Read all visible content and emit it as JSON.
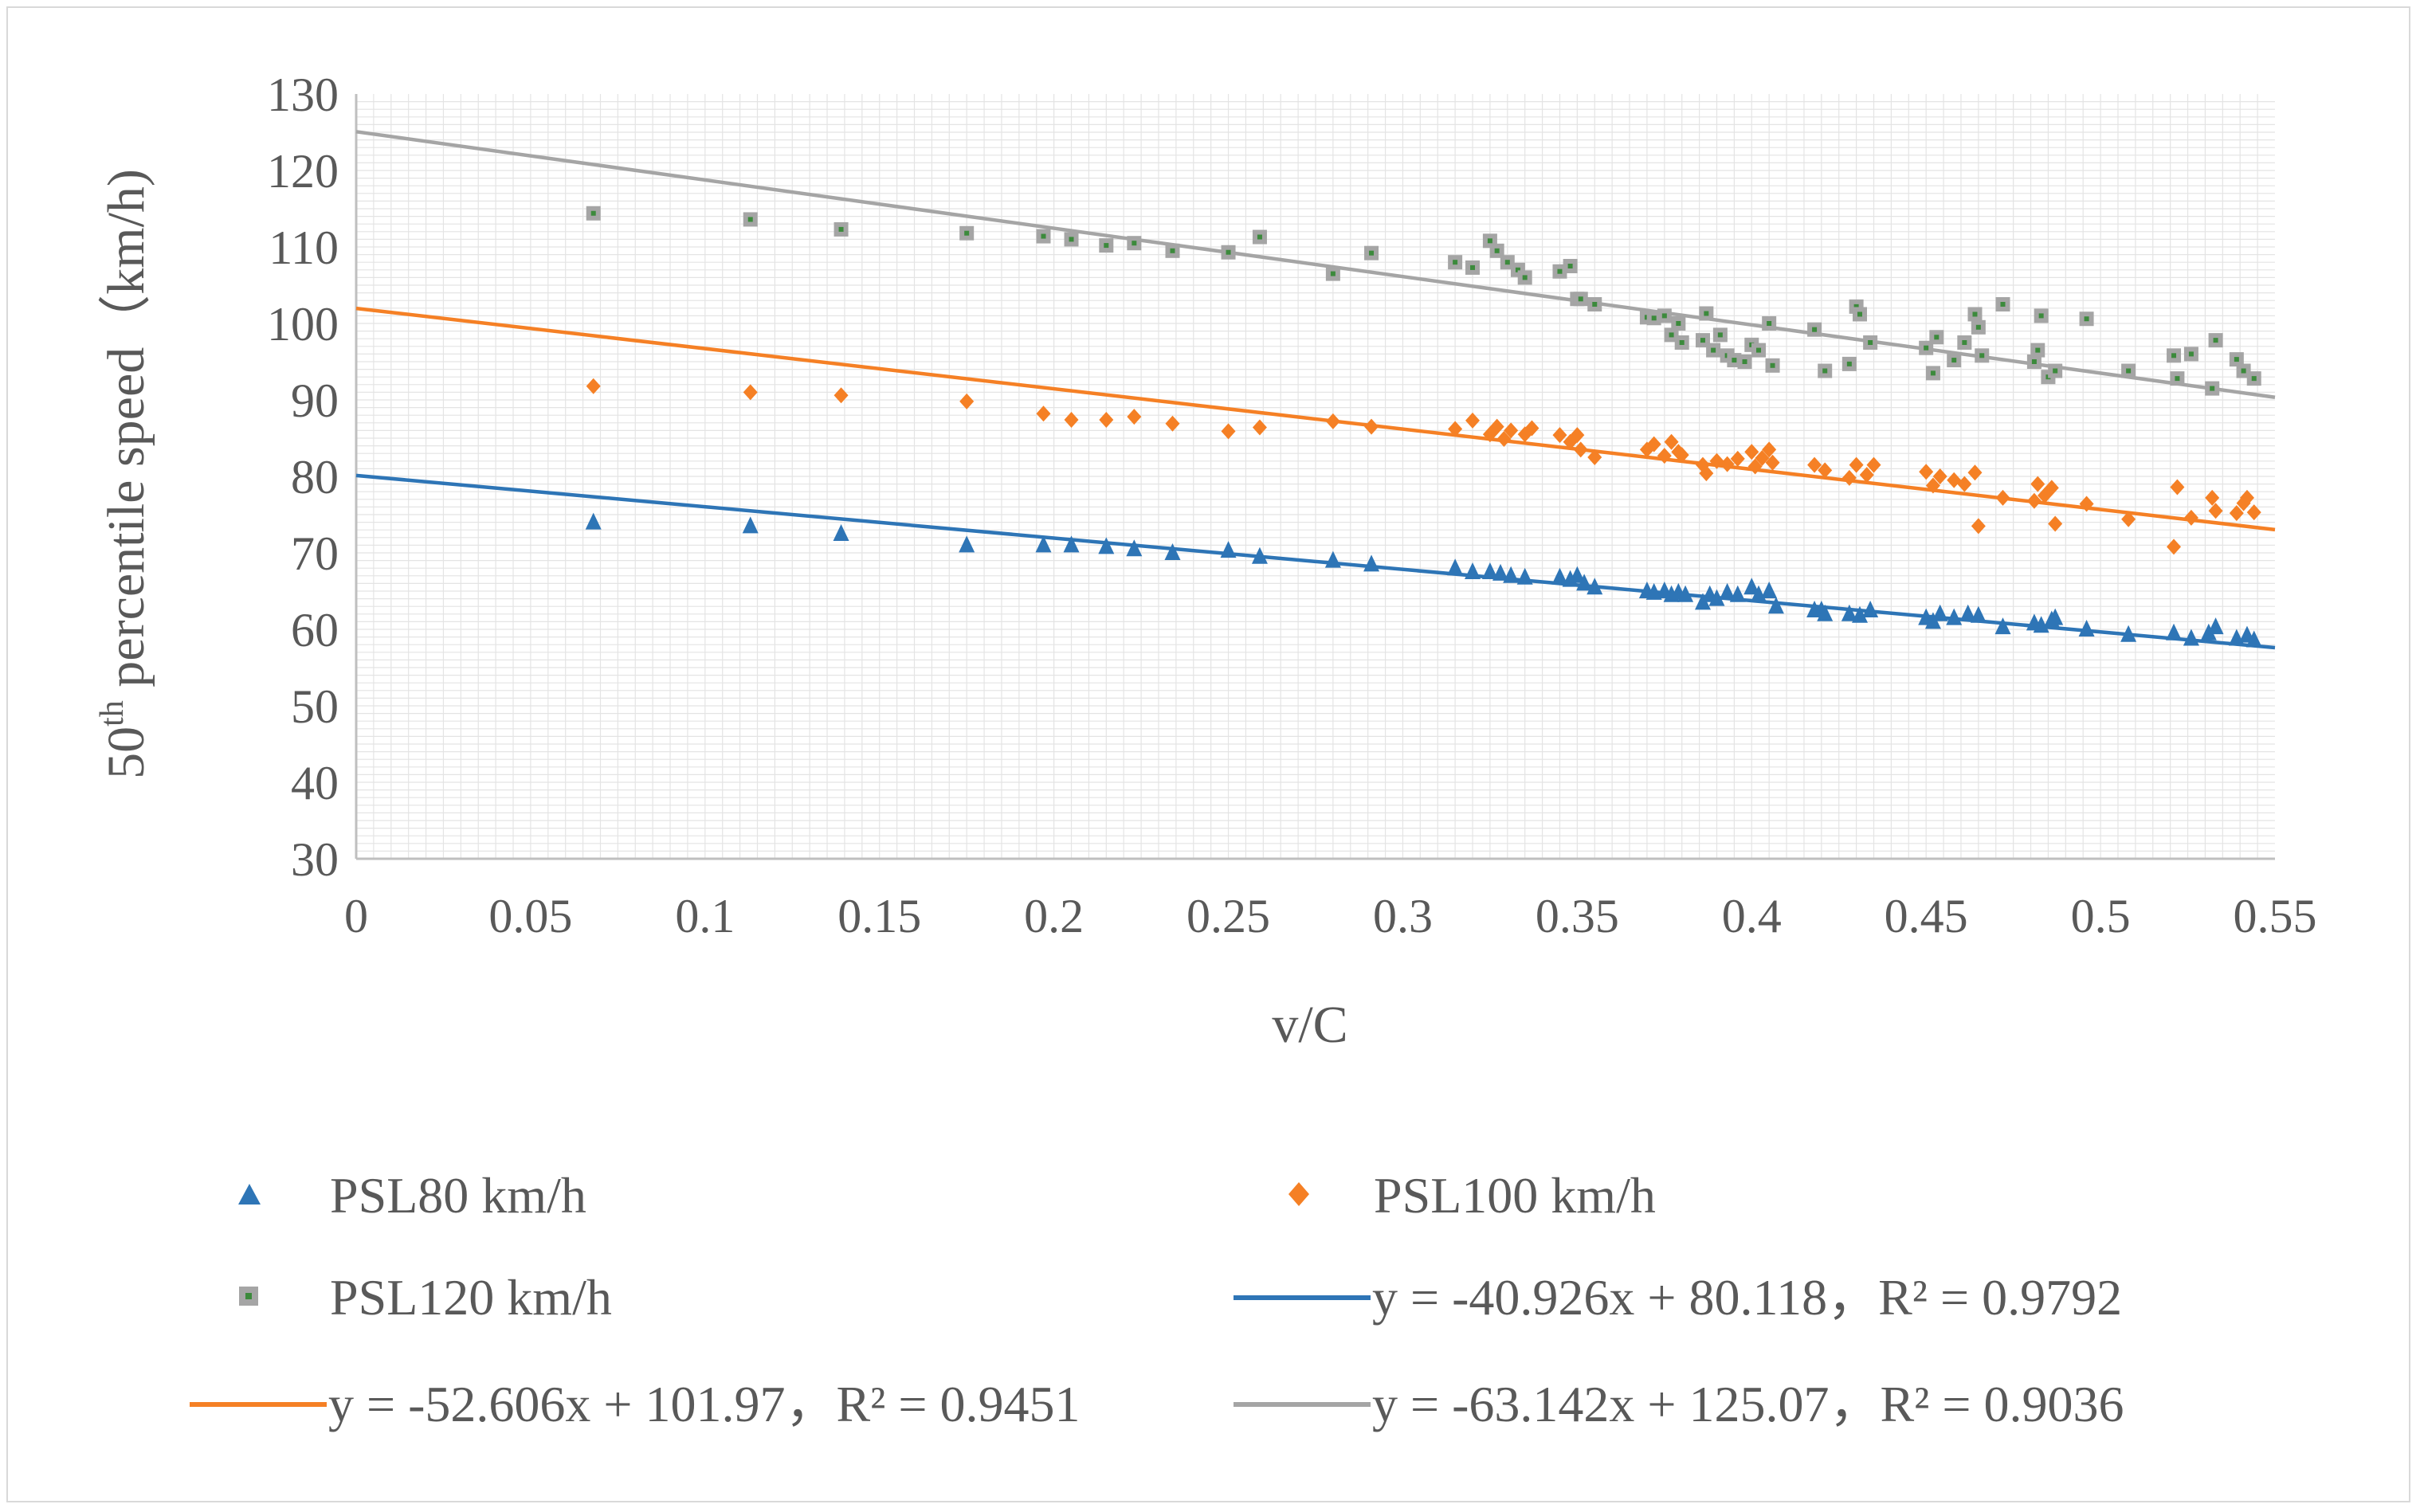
{
  "chart_data": {
    "type": "scatter",
    "title": "",
    "xlabel": "v/C",
    "ylabel": "50th percentile speed（km/h)",
    "ylabel_base": "50",
    "ylabel_sup": "th",
    "ylabel_rest": " percentile speed（km/h)",
    "xlim": [
      0,
      0.55
    ],
    "ylim": [
      30,
      130
    ],
    "x_ticks": [
      "0",
      "0.05",
      "0.1",
      "0.15",
      "0.2",
      "0.25",
      "0.3",
      "0.35",
      "0.4",
      "0.45",
      "0.5",
      "0.55"
    ],
    "y_ticks": [
      "30",
      "40",
      "50",
      "60",
      "70",
      "80",
      "90",
      "100",
      "110",
      "120",
      "130"
    ],
    "grid": "dense light gray",
    "legend_position": "bottom",
    "colors": {
      "psl80": "#2E75B6",
      "psl100": "#F58025",
      "psl120": "#A5A5A5",
      "psl120_center": "#3C8A3C",
      "axis": "#bfbfbf",
      "grid": "#e4e4e4"
    },
    "series": [
      {
        "name": "PSL80 km/h",
        "marker": "triangle",
        "color": "#2E75B6",
        "points": [
          [
            0.068,
            74
          ],
          [
            0.113,
            73.5
          ],
          [
            0.139,
            72.5
          ],
          [
            0.175,
            71
          ],
          [
            0.197,
            71
          ],
          [
            0.205,
            71
          ],
          [
            0.215,
            70.8
          ],
          [
            0.223,
            70.5
          ],
          [
            0.234,
            70
          ],
          [
            0.25,
            70.3
          ],
          [
            0.259,
            69.5
          ],
          [
            0.28,
            69
          ],
          [
            0.291,
            68.5
          ],
          [
            0.315,
            68
          ],
          [
            0.32,
            67.5
          ],
          [
            0.325,
            67.5
          ],
          [
            0.328,
            67.3
          ],
          [
            0.331,
            67
          ],
          [
            0.335,
            66.8
          ],
          [
            0.345,
            66.8
          ],
          [
            0.348,
            66.5
          ],
          [
            0.35,
            67
          ],
          [
            0.352,
            66
          ],
          [
            0.355,
            65.5
          ],
          [
            0.37,
            65
          ],
          [
            0.372,
            64.8
          ],
          [
            0.375,
            65
          ],
          [
            0.377,
            64.5
          ],
          [
            0.379,
            64.8
          ],
          [
            0.381,
            64.5
          ],
          [
            0.386,
            63.5
          ],
          [
            0.388,
            64.5
          ],
          [
            0.39,
            64
          ],
          [
            0.393,
            64.8
          ],
          [
            0.396,
            64.5
          ],
          [
            0.4,
            65.5
          ],
          [
            0.402,
            64.5
          ],
          [
            0.405,
            65
          ],
          [
            0.407,
            63
          ],
          [
            0.418,
            62.5
          ],
          [
            0.42,
            62.5
          ],
          [
            0.421,
            62
          ],
          [
            0.428,
            62
          ],
          [
            0.431,
            61.8
          ],
          [
            0.434,
            62.5
          ],
          [
            0.45,
            61.5
          ],
          [
            0.452,
            61
          ],
          [
            0.454,
            62
          ],
          [
            0.458,
            61.5
          ],
          [
            0.462,
            62
          ],
          [
            0.465,
            61.8
          ],
          [
            0.472,
            60.3
          ],
          [
            0.481,
            60.8
          ],
          [
            0.483,
            60.5
          ],
          [
            0.486,
            61.2
          ],
          [
            0.487,
            61.5
          ],
          [
            0.496,
            60
          ],
          [
            0.508,
            59.3
          ],
          [
            0.521,
            59.5
          ],
          [
            0.526,
            58.8
          ],
          [
            0.531,
            59.5
          ],
          [
            0.533,
            60.3
          ],
          [
            0.539,
            58.8
          ],
          [
            0.542,
            59.2
          ],
          [
            0.544,
            58.6
          ]
        ]
      },
      {
        "name": "PSL100 km/h",
        "marker": "diamond",
        "color": "#F58025",
        "points": [
          [
            0.068,
            91.8
          ],
          [
            0.113,
            91
          ],
          [
            0.139,
            90.6
          ],
          [
            0.175,
            89.8
          ],
          [
            0.197,
            88.2
          ],
          [
            0.205,
            87.4
          ],
          [
            0.215,
            87.4
          ],
          [
            0.223,
            87.8
          ],
          [
            0.234,
            86.9
          ],
          [
            0.25,
            85.9
          ],
          [
            0.259,
            86.4
          ],
          [
            0.28,
            87.2
          ],
          [
            0.291,
            86.5
          ],
          [
            0.315,
            86.2
          ],
          [
            0.32,
            87.3
          ],
          [
            0.325,
            85.5
          ],
          [
            0.327,
            86.5
          ],
          [
            0.329,
            84.9
          ],
          [
            0.331,
            86
          ],
          [
            0.335,
            85.5
          ],
          [
            0.337,
            86.3
          ],
          [
            0.345,
            85.4
          ],
          [
            0.348,
            84.5
          ],
          [
            0.35,
            85.4
          ],
          [
            0.351,
            83.5
          ],
          [
            0.355,
            82.5
          ],
          [
            0.37,
            83.5
          ],
          [
            0.372,
            84.2
          ],
          [
            0.375,
            82.7
          ],
          [
            0.377,
            84.5
          ],
          [
            0.379,
            83.2
          ],
          [
            0.38,
            82.8
          ],
          [
            0.386,
            81.5
          ],
          [
            0.387,
            80.4
          ],
          [
            0.39,
            82
          ],
          [
            0.393,
            81.6
          ],
          [
            0.396,
            82.3
          ],
          [
            0.4,
            83.2
          ],
          [
            0.401,
            81.3
          ],
          [
            0.403,
            82.4
          ],
          [
            0.405,
            83.5
          ],
          [
            0.406,
            81.8
          ],
          [
            0.418,
            81.5
          ],
          [
            0.421,
            80.8
          ],
          [
            0.428,
            79.8
          ],
          [
            0.43,
            81.5
          ],
          [
            0.433,
            80.2
          ],
          [
            0.435,
            81.5
          ],
          [
            0.45,
            80.6
          ],
          [
            0.452,
            78.8
          ],
          [
            0.454,
            80
          ],
          [
            0.458,
            79.5
          ],
          [
            0.461,
            79
          ],
          [
            0.464,
            80.5
          ],
          [
            0.465,
            73.5
          ],
          [
            0.472,
            77.2
          ],
          [
            0.481,
            76.8
          ],
          [
            0.482,
            79
          ],
          [
            0.484,
            77.5
          ],
          [
            0.486,
            78.5
          ],
          [
            0.487,
            73.8
          ],
          [
            0.496,
            76.4
          ],
          [
            0.508,
            74.4
          ],
          [
            0.521,
            70.8
          ],
          [
            0.522,
            78.6
          ],
          [
            0.526,
            74.6
          ],
          [
            0.532,
            77.2
          ],
          [
            0.533,
            75.5
          ],
          [
            0.539,
            75.2
          ],
          [
            0.541,
            76.5
          ],
          [
            0.542,
            77.2
          ],
          [
            0.544,
            75.3
          ]
        ]
      },
      {
        "name": "PSL120 km/h",
        "marker": "square",
        "color": "#A5A5A5",
        "points": [
          [
            0.068,
            114.4
          ],
          [
            0.113,
            113.6
          ],
          [
            0.139,
            112.3
          ],
          [
            0.175,
            111.8
          ],
          [
            0.197,
            111.4
          ],
          [
            0.205,
            111
          ],
          [
            0.215,
            110.2
          ],
          [
            0.223,
            110.5
          ],
          [
            0.234,
            109.5
          ],
          [
            0.25,
            109.3
          ],
          [
            0.259,
            111.3
          ],
          [
            0.28,
            106.5
          ],
          [
            0.291,
            109.2
          ],
          [
            0.315,
            108
          ],
          [
            0.32,
            107.3
          ],
          [
            0.325,
            110.8
          ],
          [
            0.327,
            109.5
          ],
          [
            0.33,
            108
          ],
          [
            0.333,
            107
          ],
          [
            0.335,
            106
          ],
          [
            0.345,
            106.8
          ],
          [
            0.348,
            107.5
          ],
          [
            0.35,
            103.2
          ],
          [
            0.351,
            103.2
          ],
          [
            0.355,
            102.5
          ],
          [
            0.37,
            100.8
          ],
          [
            0.372,
            100.7
          ],
          [
            0.375,
            101
          ],
          [
            0.377,
            98.5
          ],
          [
            0.379,
            100
          ],
          [
            0.38,
            97.5
          ],
          [
            0.386,
            97.8
          ],
          [
            0.387,
            101.3
          ],
          [
            0.389,
            96.5
          ],
          [
            0.391,
            98.5
          ],
          [
            0.393,
            95.8
          ],
          [
            0.395,
            95.2
          ],
          [
            0.398,
            95
          ],
          [
            0.4,
            97.2
          ],
          [
            0.402,
            96.5
          ],
          [
            0.405,
            100
          ],
          [
            0.406,
            94.5
          ],
          [
            0.418,
            99.2
          ],
          [
            0.421,
            93.8
          ],
          [
            0.428,
            94.7
          ],
          [
            0.43,
            102.2
          ],
          [
            0.431,
            101.2
          ],
          [
            0.434,
            97.5
          ],
          [
            0.45,
            96.8
          ],
          [
            0.452,
            93.5
          ],
          [
            0.453,
            98.2
          ],
          [
            0.458,
            95.2
          ],
          [
            0.461,
            97.5
          ],
          [
            0.464,
            101.2
          ],
          [
            0.465,
            99.5
          ],
          [
            0.466,
            95.8
          ],
          [
            0.472,
            102.5
          ],
          [
            0.481,
            95
          ],
          [
            0.482,
            96.5
          ],
          [
            0.483,
            101
          ],
          [
            0.485,
            93
          ],
          [
            0.487,
            93.8
          ],
          [
            0.496,
            100.6
          ],
          [
            0.508,
            93.8
          ],
          [
            0.521,
            95.8
          ],
          [
            0.522,
            92.8
          ],
          [
            0.526,
            96
          ],
          [
            0.532,
            91.5
          ],
          [
            0.533,
            97.8
          ],
          [
            0.539,
            95.3
          ],
          [
            0.541,
            93.8
          ],
          [
            0.544,
            92.8
          ]
        ]
      }
    ],
    "trendlines": [
      {
        "name": "y = -40.926x + 80.118，R² = 0.9792",
        "slope": -40.926,
        "intercept": 80.118,
        "color": "#2E75B6"
      },
      {
        "name": "y = -52.606x + 101.97，R² = 0.9451",
        "slope": -52.606,
        "intercept": 101.97,
        "color": "#F58025"
      },
      {
        "name": "y = -63.142x + 125.07，R² = 0.9036",
        "slope": -63.142,
        "intercept": 125.07,
        "color": "#A5A5A5"
      }
    ]
  }
}
